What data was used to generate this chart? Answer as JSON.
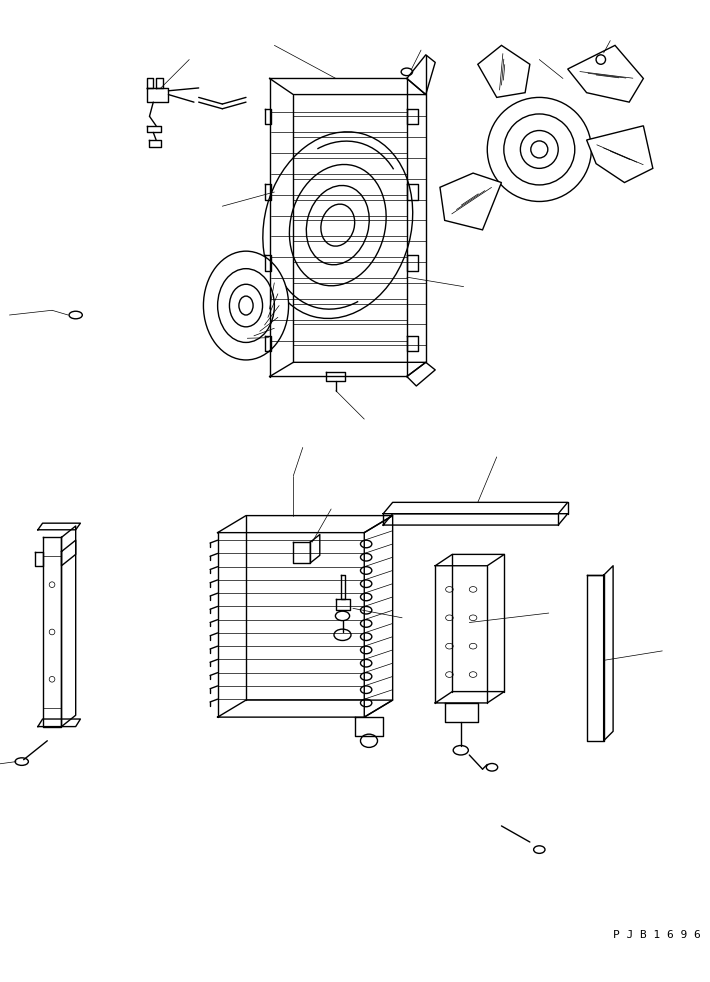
{
  "bg_color": "#ffffff",
  "line_color": "#000000",
  "line_width": 1.0,
  "thin_line": 0.5,
  "fig_width": 7.1,
  "fig_height": 9.82,
  "watermark": "P J B 1 6 9 6"
}
